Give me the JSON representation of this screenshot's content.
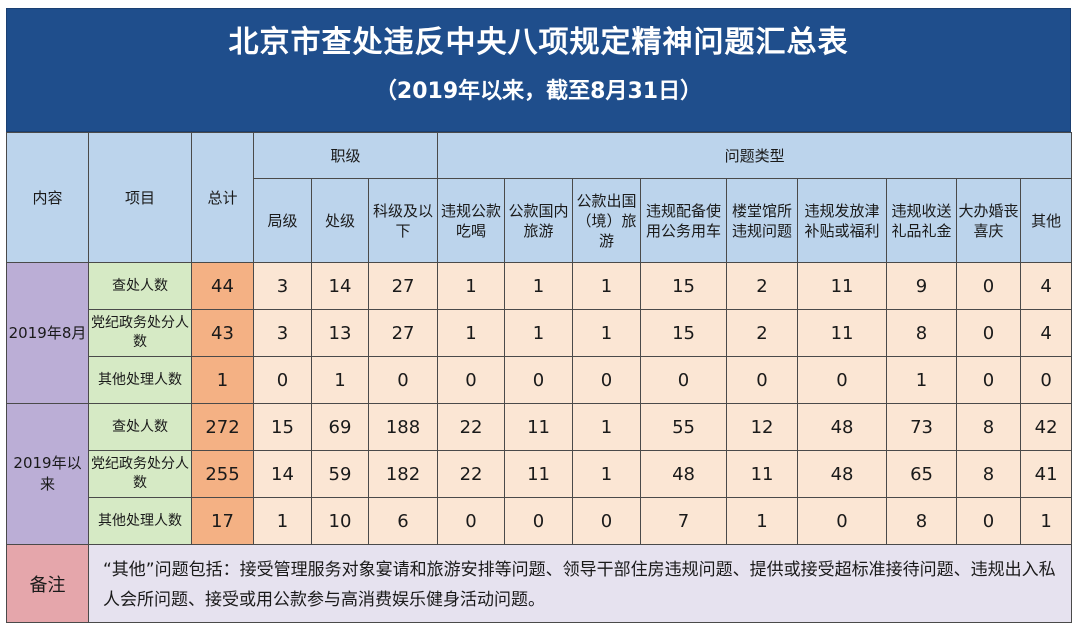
{
  "title": "北京市查处违反中央八项规定精神问题汇总表",
  "subtitle": "（2019年以来，截至8月31日）",
  "headers": {
    "content": "内容",
    "item": "项目",
    "total": "总计",
    "rank_group": "职级",
    "type_group": "问题类型",
    "rank_cols": [
      "局级",
      "处级",
      "科级及以下"
    ],
    "type_cols": [
      "违规公款吃喝",
      "公款国内旅游",
      "公款出国（境）旅游",
      "违规配备使用公务用车",
      "楼堂馆所违规问题",
      "违规发放津补贴或福利",
      "违规收送礼品礼金",
      "大办婚丧喜庆",
      "其他"
    ]
  },
  "groups": [
    {
      "label": "2019年8月",
      "rows": [
        {
          "item": "查处人数",
          "total": "44",
          "values": [
            "3",
            "14",
            "27",
            "1",
            "1",
            "1",
            "15",
            "2",
            "11",
            "9",
            "0",
            "4"
          ]
        },
        {
          "item": "党纪政务处分人数",
          "total": "43",
          "values": [
            "3",
            "13",
            "27",
            "1",
            "1",
            "1",
            "15",
            "2",
            "11",
            "8",
            "0",
            "4"
          ]
        },
        {
          "item": "其他处理人数",
          "total": "1",
          "values": [
            "0",
            "1",
            "0",
            "0",
            "0",
            "0",
            "0",
            "0",
            "0",
            "1",
            "0",
            "0"
          ]
        }
      ]
    },
    {
      "label": "2019年以来",
      "rows": [
        {
          "item": "查处人数",
          "total": "272",
          "values": [
            "15",
            "69",
            "188",
            "22",
            "11",
            "1",
            "55",
            "12",
            "48",
            "73",
            "8",
            "42"
          ]
        },
        {
          "item": "党纪政务处分人数",
          "total": "255",
          "values": [
            "14",
            "59",
            "182",
            "22",
            "11",
            "1",
            "48",
            "11",
            "48",
            "65",
            "8",
            "41"
          ]
        },
        {
          "item": "其他处理人数",
          "total": "17",
          "values": [
            "1",
            "10",
            "6",
            "0",
            "0",
            "0",
            "7",
            "1",
            "0",
            "8",
            "0",
            "1"
          ]
        }
      ]
    }
  ],
  "note": {
    "label": "备注",
    "text": "“其他”问题包括：接受管理服务对象宴请和旅游安排等问题、领导干部住房违规问题、提供或接受超标准接待问题、违规出入私人会所问题、接受或用公款参与高消费娱乐健身活动问题。"
  },
  "colors": {
    "title_bg": "#1f4e8c",
    "header_bg": "#bcd4ec",
    "group_bg": "#bbaed6",
    "item_bg": "#d6eac5",
    "total_bg": "#f4b184",
    "value_bg": "#fbe6d4",
    "note_label_bg": "#e5a6ab",
    "note_text_bg": "#e6e2ef"
  }
}
